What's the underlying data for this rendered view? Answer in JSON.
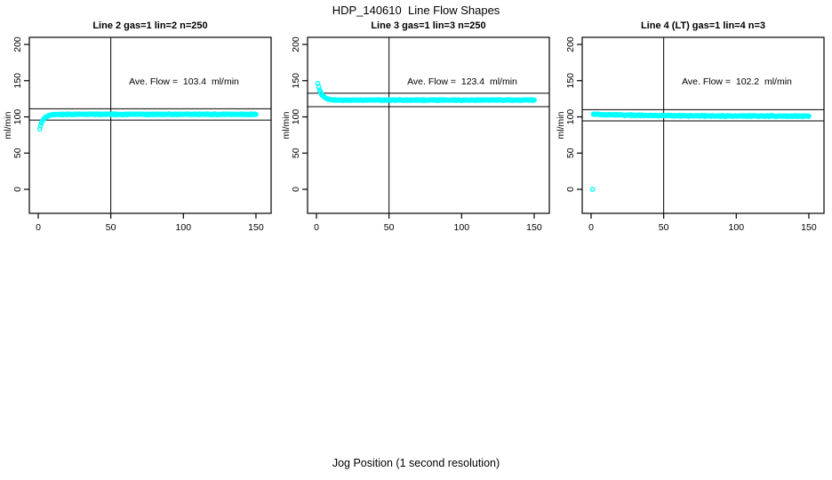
{
  "header": {
    "main_title": "HDP_140610  Line Flow Shapes"
  },
  "footer": {
    "xlabel": "Jog Position (1 second resolution)"
  },
  "chart_data": {
    "type": "scatter",
    "layout": "1 row x 3 panels",
    "marker": "open-circle",
    "point_color": "#00FFFF",
    "line_color": "#000000",
    "axes": {
      "xlim": [
        0,
        150
      ],
      "ylim": [
        0,
        200
      ],
      "x_ticks": [
        0,
        50,
        100,
        150
      ],
      "y_ticks": [
        0,
        50,
        100,
        150,
        200
      ],
      "ylabel": "ml/min",
      "grid": false
    },
    "panels": [
      {
        "title": "Line 2 gas=1 lin=2 n=250",
        "ave_flow": 103.4,
        "ave_flow_label": "Ave. Flow =  103.4  ml/min",
        "n": 250,
        "ref_line_upper": 111.2,
        "ref_line_lower": 95.6,
        "ref_line_vertical_x": 50,
        "series_model": {
          "plateau": 103.5,
          "amp": -20,
          "tau": 2.5,
          "x_offset": 1,
          "x_start": 1,
          "x_end": 150,
          "n_points": 250,
          "jitter": 0.8,
          "first_point_y": null
        },
        "keypoints": [
          [
            1,
            83.5
          ],
          [
            2,
            90
          ],
          [
            3,
            94.5
          ],
          [
            5,
            99
          ],
          [
            8,
            102
          ],
          [
            12,
            103
          ],
          [
            50,
            103.4
          ],
          [
            100,
            103.5
          ],
          [
            150,
            103.5
          ]
        ]
      },
      {
        "title": "Line 3 gas=1 lin=3 n=250",
        "ave_flow": 123.4,
        "ave_flow_label": "Ave. Flow =  123.4  ml/min",
        "n": 250,
        "ref_line_upper": 132.7,
        "ref_line_lower": 114.1,
        "ref_line_vertical_x": 50,
        "series_model": {
          "plateau": 123.2,
          "amp": 23,
          "tau": 2.4,
          "x_offset": 1,
          "x_start": 1,
          "x_end": 150,
          "n_points": 250,
          "jitter": 0.75,
          "first_point_y": null
        },
        "keypoints": [
          [
            1,
            146
          ],
          [
            2,
            140
          ],
          [
            3,
            134
          ],
          [
            5,
            127
          ],
          [
            8,
            124.2
          ],
          [
            12,
            123.4
          ],
          [
            65,
            125.3
          ],
          [
            150,
            123.3
          ]
        ]
      },
      {
        "title": "Line 4 (LT) gas=1 lin=4 n=3",
        "ave_flow": 102.2,
        "ave_flow_label": "Ave. Flow =  102.2  ml/min",
        "n": 3,
        "ref_line_upper": 109.9,
        "ref_line_lower": 94.5,
        "ref_line_vertical_x": 50,
        "series_model": {
          "plateau": 100.9,
          "amp": 2.6,
          "tau": 45,
          "x_offset": 2,
          "x_start": 1,
          "x_end": 150,
          "n_points": 250,
          "jitter": 0.8,
          "first_point_y": 0
        },
        "keypoints": [
          [
            1,
            0
          ],
          [
            2,
            103.5
          ],
          [
            10,
            103.1
          ],
          [
            50,
            101.8
          ],
          [
            100,
            101.2
          ],
          [
            150,
            100.9
          ]
        ]
      }
    ]
  }
}
